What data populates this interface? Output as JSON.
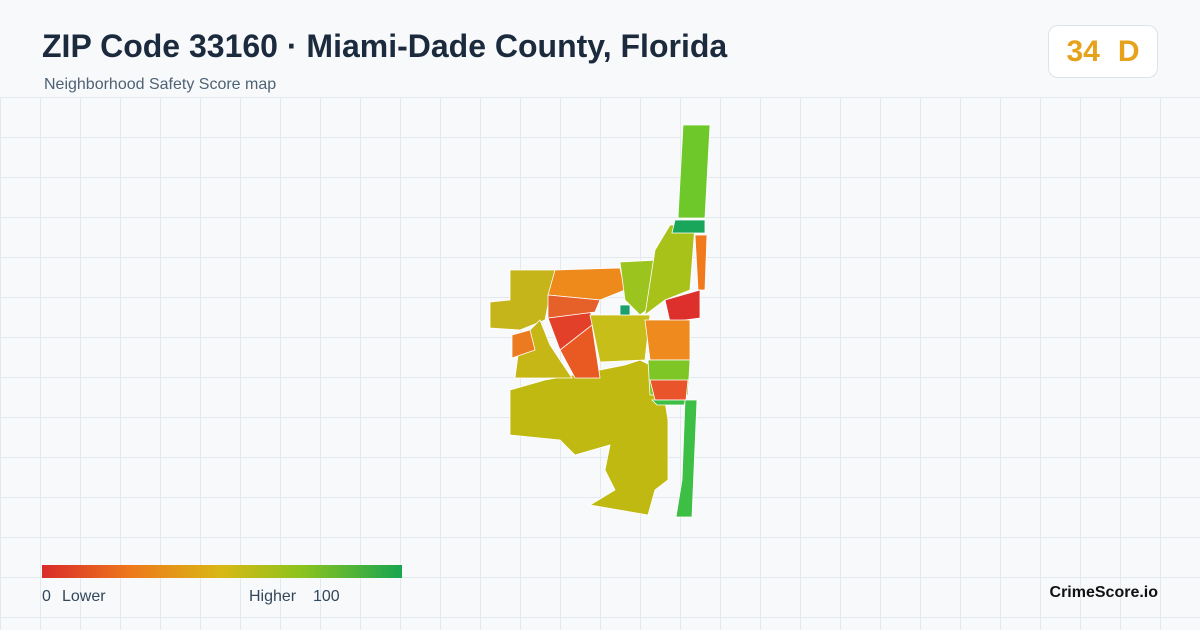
{
  "header": {
    "title": "ZIP Code 33160 · Miami-Dade County, Florida",
    "subtitle": "Neighborhood Safety Score map"
  },
  "score": {
    "value": 34,
    "grade": "D"
  },
  "legend": {
    "min": 0,
    "min_label": "Lower",
    "max_label": "Higher",
    "max": 100
  },
  "brand": "CrimeScore.io"
}
